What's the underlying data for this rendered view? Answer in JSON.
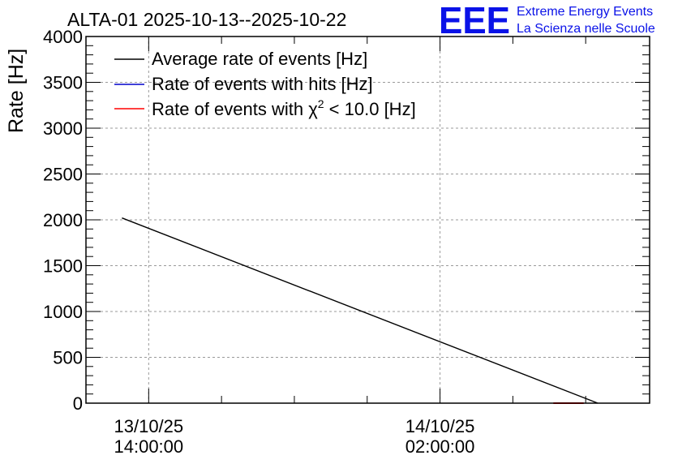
{
  "chart_data": {
    "type": "line",
    "title": "ALTA-01 2025-10-13--2025-10-22",
    "ylabel": "Rate [Hz]",
    "xlabel": "",
    "ylim": [
      0,
      4000
    ],
    "y_ticks": [
      "0",
      "500",
      "1000",
      "1500",
      "2000",
      "2500",
      "3000",
      "3500",
      "4000"
    ],
    "x_ticks": [
      {
        "date": "13/10/25",
        "time": "14:00:00"
      },
      {
        "date": "14/10/25",
        "time": "02:00:00"
      }
    ],
    "grid": true,
    "legend_position": "top-left",
    "series": [
      {
        "name": "Average rate of events [Hz]",
        "color": "#000000",
        "points": [
          {
            "x": "2025-10-13 12:54",
            "y": 2020
          },
          {
            "x": "2025-10-14 08:30",
            "y": 0
          }
        ]
      },
      {
        "name_prefix": "Rate of events with hits [Hz]",
        "name": "Rate of events with hits [Hz]",
        "color": "#0000cc",
        "points": []
      },
      {
        "name": "Rate of events with χ2 < 10.0 [Hz]",
        "name_prefix": "Rate of events with χ",
        "name_sup": "2",
        "name_suffix": " < 10.0 [Hz]",
        "color": "#ff0000",
        "points": [
          {
            "x": "2025-10-14 06:40",
            "y": 0
          },
          {
            "x": "2025-10-14 07:55",
            "y": 0
          }
        ]
      }
    ]
  },
  "logo": {
    "letters": "EEE",
    "line1": "Extreme Energy Events",
    "line2": "La Scienza nelle Scuole",
    "color": "#0a12e8"
  }
}
